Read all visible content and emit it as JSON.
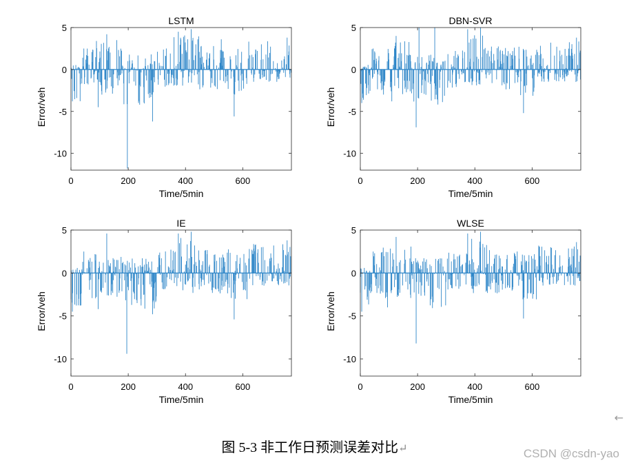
{
  "figure_caption": "图 5-3 非工作日预测误差对比",
  "caption_enter_mark": "↵",
  "side_arrow": "←",
  "watermark": "CSDN @csdn-yao",
  "colors": {
    "bar": "#2E86C8",
    "axis": "#262626",
    "background": "#ffffff"
  },
  "chart_data": [
    {
      "type": "bar",
      "title": "LSTM",
      "xlabel": "Time/5min",
      "ylabel": "Error/veh",
      "xlim": [
        0,
        770
      ],
      "ylim": [
        -12,
        5
      ],
      "xticks": [
        0,
        200,
        400,
        600
      ],
      "yticks": [
        5,
        0,
        -5,
        -10
      ],
      "grid": false,
      "n_points": 770,
      "series_note": "per-interval error bars",
      "key_values": [
        {
          "x": 5,
          "y": -3.8
        },
        {
          "x": 45,
          "y": 2.5
        },
        {
          "x": 95,
          "y": -4.5
        },
        {
          "x": 125,
          "y": 4.2
        },
        {
          "x": 160,
          "y": 3.5
        },
        {
          "x": 197,
          "y": -11.8
        },
        {
          "x": 240,
          "y": -4.2
        },
        {
          "x": 285,
          "y": -6.2
        },
        {
          "x": 375,
          "y": 4.5
        },
        {
          "x": 420,
          "y": 4.8
        },
        {
          "x": 525,
          "y": 3.6
        },
        {
          "x": 570,
          "y": -5.6
        },
        {
          "x": 665,
          "y": 3.0
        },
        {
          "x": 755,
          "y": 3.8
        }
      ]
    },
    {
      "type": "bar",
      "title": "DBN-SVR",
      "xlabel": "Time/5min",
      "ylabel": "Error/veh",
      "xlim": [
        0,
        770
      ],
      "ylim": [
        -12,
        5
      ],
      "xticks": [
        0,
        200,
        400,
        600
      ],
      "yticks": [
        5,
        0,
        -5,
        -10
      ],
      "grid": false,
      "n_points": 770,
      "key_values": [
        {
          "x": 5,
          "y": -4.0
        },
        {
          "x": 45,
          "y": 2.5
        },
        {
          "x": 110,
          "y": -3.8
        },
        {
          "x": 125,
          "y": 4.0
        },
        {
          "x": 195,
          "y": -6.9
        },
        {
          "x": 205,
          "y": 5.0
        },
        {
          "x": 260,
          "y": 5.0
        },
        {
          "x": 375,
          "y": 4.8
        },
        {
          "x": 420,
          "y": 5.0
        },
        {
          "x": 570,
          "y": -5.2
        },
        {
          "x": 665,
          "y": 3.2
        },
        {
          "x": 755,
          "y": 3.8
        }
      ]
    },
    {
      "type": "bar",
      "title": "IE",
      "xlabel": "Time/5min",
      "ylabel": "Error/veh",
      "xlim": [
        0,
        770
      ],
      "ylim": [
        -12,
        5
      ],
      "xticks": [
        0,
        200,
        400,
        600
      ],
      "yticks": [
        5,
        0,
        -5,
        -10
      ],
      "grid": false,
      "n_points": 770,
      "key_values": [
        {
          "x": 5,
          "y": -4.5
        },
        {
          "x": 45,
          "y": 2.5
        },
        {
          "x": 95,
          "y": -4.2
        },
        {
          "x": 125,
          "y": 4.6
        },
        {
          "x": 195,
          "y": -9.4
        },
        {
          "x": 285,
          "y": -4.8
        },
        {
          "x": 375,
          "y": 4.6
        },
        {
          "x": 420,
          "y": 4.8
        },
        {
          "x": 570,
          "y": -5.4
        },
        {
          "x": 665,
          "y": 3.0
        },
        {
          "x": 755,
          "y": 3.8
        }
      ]
    },
    {
      "type": "bar",
      "title": "WLSE",
      "xlabel": "Time/5min",
      "ylabel": "Error/veh",
      "xlim": [
        0,
        770
      ],
      "ylim": [
        -12,
        5
      ],
      "xticks": [
        0,
        200,
        400,
        600
      ],
      "yticks": [
        5,
        0,
        -5,
        -10
      ],
      "grid": false,
      "n_points": 770,
      "key_values": [
        {
          "x": 5,
          "y": -4.5
        },
        {
          "x": 45,
          "y": 2.5
        },
        {
          "x": 95,
          "y": -4.0
        },
        {
          "x": 125,
          "y": 4.2
        },
        {
          "x": 195,
          "y": -8.2
        },
        {
          "x": 375,
          "y": 4.6
        },
        {
          "x": 420,
          "y": 4.8
        },
        {
          "x": 570,
          "y": -5.3
        },
        {
          "x": 665,
          "y": 3.0
        },
        {
          "x": 755,
          "y": 3.6
        }
      ]
    }
  ]
}
